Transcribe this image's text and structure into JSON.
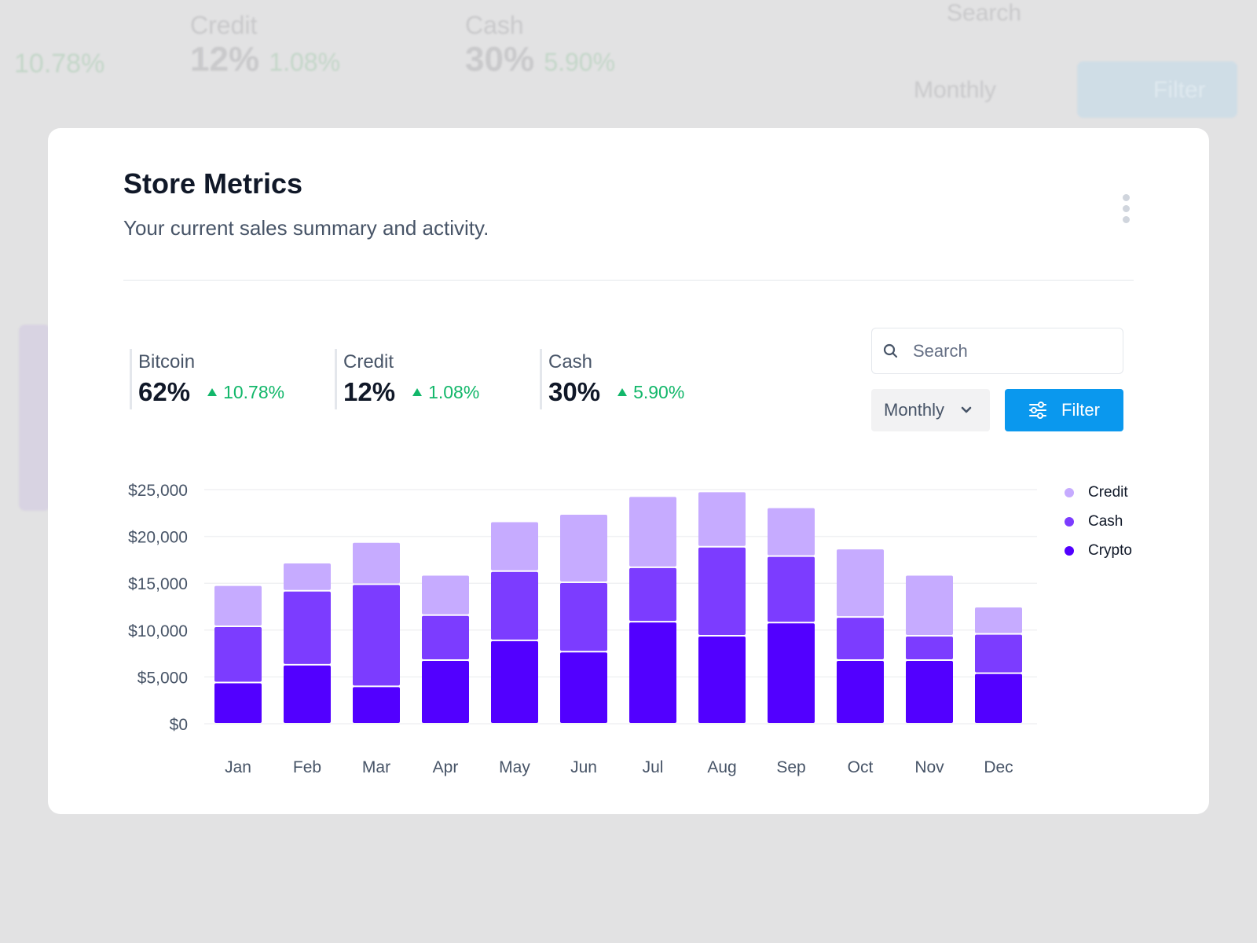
{
  "background": {
    "stats": [
      {
        "label": "Credit",
        "value": "12%",
        "change": "1.08%"
      },
      {
        "label": "Cash",
        "value": "30%",
        "change": "5.90%"
      }
    ],
    "first_change": "10.78%",
    "search_placeholder": "Search",
    "period": "Monthly",
    "filter_label": "Filter"
  },
  "card": {
    "title": "Store Metrics",
    "subtitle": "Your current sales summary and activity.",
    "stats": [
      {
        "label": "Bitcoin",
        "value": "62%",
        "change": "10.78%",
        "trend": "up"
      },
      {
        "label": "Credit",
        "value": "12%",
        "change": "1.08%",
        "trend": "up"
      },
      {
        "label": "Cash",
        "value": "30%",
        "change": "5.90%",
        "trend": "up"
      }
    ],
    "search_placeholder": "Search",
    "period": "Monthly",
    "filter_label": "Filter",
    "accent": "#0a98ee",
    "positive_color": "#12b76a"
  },
  "chart_data": {
    "type": "bar",
    "stacked": true,
    "categories": [
      "Jan",
      "Feb",
      "Mar",
      "Apr",
      "May",
      "Jun",
      "Jul",
      "Aug",
      "Sep",
      "Oct",
      "Nov",
      "Dec"
    ],
    "series": [
      {
        "name": "Crypto",
        "color": "#5200ff",
        "values": [
          4400,
          6300,
          4000,
          6800,
          8900,
          7700,
          10900,
          9400,
          10800,
          6800,
          6800,
          5400
        ]
      },
      {
        "name": "Cash",
        "color": "#7c3cff",
        "values": [
          6000,
          7900,
          10900,
          4800,
          7400,
          7400,
          5800,
          9500,
          7100,
          4600,
          2600,
          4200
        ]
      },
      {
        "name": "Credit",
        "color": "#c6abff",
        "values": [
          4400,
          3000,
          4500,
          4300,
          5300,
          7300,
          7600,
          5900,
          5200,
          7300,
          6500,
          2900
        ]
      }
    ],
    "legend": [
      "Credit",
      "Cash",
      "Crypto"
    ],
    "legend_colors": [
      "#c6abff",
      "#7c3cff",
      "#5200ff"
    ],
    "legend_position": "right",
    "yticks": [
      "$0",
      "$5,000",
      "$10,000",
      "$15,000",
      "$20,000",
      "$25,000"
    ],
    "ylim": [
      0,
      25000
    ],
    "grid": true
  }
}
